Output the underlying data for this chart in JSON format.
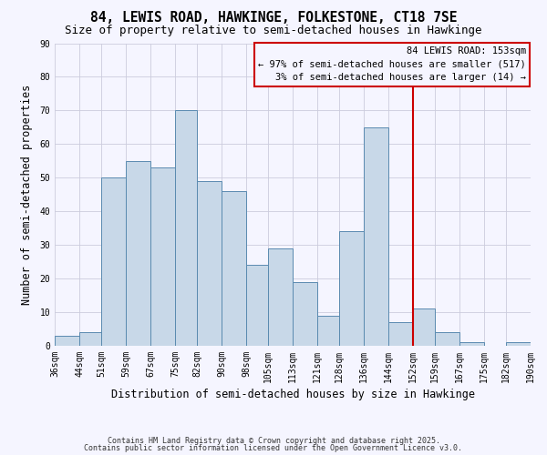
{
  "title": "84, LEWIS ROAD, HAWKINGE, FOLKESTONE, CT18 7SE",
  "subtitle": "Size of property relative to semi-detached houses in Hawkinge",
  "xlabel": "Distribution of semi-detached houses by size in Hawkinge",
  "ylabel": "Number of semi-detached properties",
  "bin_labels": [
    "36sqm",
    "44sqm",
    "51sqm",
    "59sqm",
    "67sqm",
    "75sqm",
    "82sqm",
    "90sqm",
    "98sqm",
    "105sqm",
    "113sqm",
    "121sqm",
    "128sqm",
    "136sqm",
    "144sqm",
    "152sqm",
    "159sqm",
    "167sqm",
    "175sqm",
    "182sqm",
    "190sqm"
  ],
  "bin_edges": [
    36,
    44,
    51,
    59,
    67,
    75,
    82,
    90,
    98,
    105,
    113,
    121,
    128,
    136,
    144,
    152,
    159,
    167,
    175,
    182,
    190
  ],
  "counts": [
    3,
    4,
    50,
    55,
    53,
    70,
    49,
    46,
    24,
    29,
    19,
    9,
    34,
    65,
    7,
    11,
    4,
    1,
    0,
    1
  ],
  "bar_color": "#c8d8e8",
  "bar_edge_color": "#5a8ab0",
  "marker_value": 152,
  "marker_color": "#cc0000",
  "annotation_title": "84 LEWIS ROAD: 153sqm",
  "annotation_line1": "← 97% of semi-detached houses are smaller (517)",
  "annotation_line2": "3% of semi-detached houses are larger (14) →",
  "ylim": [
    0,
    90
  ],
  "yticks": [
    0,
    10,
    20,
    30,
    40,
    50,
    60,
    70,
    80,
    90
  ],
  "footer1": "Contains HM Land Registry data © Crown copyright and database right 2025.",
  "footer2": "Contains public sector information licensed under the Open Government Licence v3.0.",
  "bg_color": "#f5f5ff",
  "grid_color": "#ccccdd",
  "title_fontsize": 10.5,
  "subtitle_fontsize": 9,
  "axis_label_fontsize": 8.5,
  "tick_fontsize": 7,
  "annotation_fontsize": 7.5,
  "footer_fontsize": 6
}
